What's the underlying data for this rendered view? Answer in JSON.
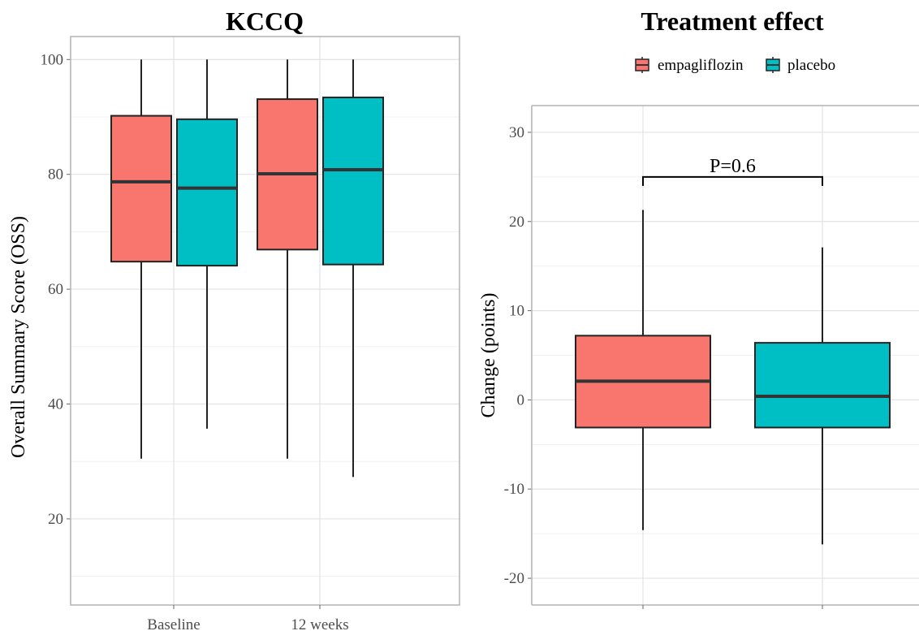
{
  "chart_data": [
    {
      "type": "box",
      "title": "KCCQ",
      "xlabel": "",
      "ylabel": "Overall Summary Score (OSS)",
      "categories": [
        "Baseline",
        "12 weeks"
      ],
      "ylim": [
        5,
        104
      ],
      "yticks": [
        20,
        40,
        60,
        80,
        100
      ],
      "grid": true,
      "series": [
        {
          "name": "empagliflozin",
          "color": "#F8766D",
          "boxes": [
            {
              "category": "Baseline",
              "min": 30.5,
              "q1": 64.8,
              "median": 78.7,
              "q3": 90.2,
              "max": 100
            },
            {
              "category": "12 weeks",
              "min": 30.5,
              "q1": 66.9,
              "median": 80.1,
              "q3": 93.1,
              "max": 100
            }
          ]
        },
        {
          "name": "placebo",
          "color": "#00BFC4",
          "boxes": [
            {
              "category": "Baseline",
              "min": 35.7,
              "q1": 64.1,
              "median": 77.6,
              "q3": 89.6,
              "max": 100
            },
            {
              "category": "12 weeks",
              "min": 27.3,
              "q1": 64.3,
              "median": 80.8,
              "q3": 93.4,
              "max": 100
            }
          ]
        }
      ]
    },
    {
      "type": "box",
      "title": "Treatment effect",
      "xlabel": "",
      "ylabel": "Change (points)",
      "categories": [
        "empagliflozin",
        "placebo"
      ],
      "ylim": [
        -23,
        33
      ],
      "yticks": [
        -20,
        -10,
        0,
        10,
        20,
        30
      ],
      "grid": true,
      "legend": {
        "position": "top",
        "entries": [
          "empagliflozin",
          "placebo"
        ]
      },
      "annotation": {
        "text": "P=0.6",
        "y": 25
      },
      "series": [
        {
          "name": "empagliflozin",
          "color": "#F8766D",
          "min": -14.6,
          "q1": -3.1,
          "median": 2.1,
          "q3": 7.2,
          "max": 21.3
        },
        {
          "name": "placebo",
          "color": "#00BFC4",
          "min": -16.2,
          "q1": -3.1,
          "median": 0.4,
          "q3": 6.4,
          "max": 17.1
        }
      ]
    }
  ]
}
